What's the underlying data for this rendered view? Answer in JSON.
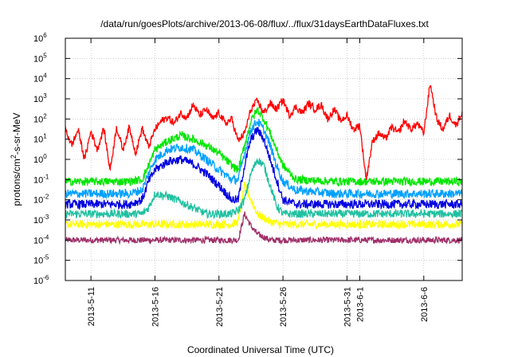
{
  "chart_data": {
    "type": "line",
    "title": "/data/run/goesPlots/archive/2013-06-08/flux/../flux/31daysEarthDataFluxes.txt",
    "xlabel": "Coordinated Universal Time (UTC)",
    "ylabel_main": "protons/cm",
    "ylabel_sup": "2",
    "ylabel_tail": "-s-sr-MeV",
    "y_scale": "log",
    "ylim": [
      1e-06,
      1000000.0
    ],
    "xlim": [
      "2013-05-09",
      "2013-06-09"
    ],
    "y_ticks": [
      {
        "value": 1e-06,
        "base": "10",
        "exp": "-6"
      },
      {
        "value": 1e-05,
        "base": "10",
        "exp": "-5"
      },
      {
        "value": 0.0001,
        "base": "10",
        "exp": "-4"
      },
      {
        "value": 0.001,
        "base": "10",
        "exp": "-3"
      },
      {
        "value": 0.01,
        "base": "10",
        "exp": "-2"
      },
      {
        "value": 0.1,
        "base": "10",
        "exp": "-1"
      },
      {
        "value": 1,
        "base": "10",
        "exp": "0"
      },
      {
        "value": 10,
        "base": "10",
        "exp": "1"
      },
      {
        "value": 100,
        "base": "10",
        "exp": "2"
      },
      {
        "value": 1000,
        "base": "10",
        "exp": "3"
      },
      {
        "value": 10000,
        "base": "10",
        "exp": "4"
      },
      {
        "value": 100000,
        "base": "10",
        "exp": "5"
      },
      {
        "value": 1000000,
        "base": "10",
        "exp": "6"
      }
    ],
    "x_ticks": [
      {
        "date": "2013-05-11",
        "label": "2013-5-11"
      },
      {
        "date": "2013-05-16",
        "label": "2013-5-16"
      },
      {
        "date": "2013-05-21",
        "label": "2013-5-21"
      },
      {
        "date": "2013-05-26",
        "label": "2013-5-26"
      },
      {
        "date": "2013-05-31",
        "label": "2013-5-31"
      },
      {
        "date": "2013-06-01",
        "label": "2013-6-1"
      },
      {
        "date": "2013-06-06",
        "label": "2013-6-6"
      }
    ],
    "grid": true,
    "legend": "none",
    "series": [
      {
        "color": "#ff0000",
        "noise": 0.18,
        "x": [
          "2013-05-09",
          "2013-05-09 12:00",
          "2013-05-10",
          "2013-05-10 12:00",
          "2013-05-11",
          "2013-05-11 12:00",
          "2013-05-12",
          "2013-05-12 12:00",
          "2013-05-13",
          "2013-05-13 12:00",
          "2013-05-14",
          "2013-05-14 12:00",
          "2013-05-15",
          "2013-05-15 12:00",
          "2013-05-16",
          "2013-05-16 12:00",
          "2013-05-17",
          "2013-05-17 12:00",
          "2013-05-18",
          "2013-05-18 12:00",
          "2013-05-19",
          "2013-05-19 12:00",
          "2013-05-20",
          "2013-05-20 12:00",
          "2013-05-21",
          "2013-05-21 12:00",
          "2013-05-22",
          "2013-05-22 12:00",
          "2013-05-23",
          "2013-05-23 12:00",
          "2013-05-24",
          "2013-05-24 12:00",
          "2013-05-25",
          "2013-05-25 12:00",
          "2013-05-26",
          "2013-05-26 12:00",
          "2013-05-27",
          "2013-05-27 12:00",
          "2013-05-28",
          "2013-05-28 12:00",
          "2013-05-29",
          "2013-05-29 12:00",
          "2013-05-30",
          "2013-05-30 12:00",
          "2013-05-31",
          "2013-05-31 12:00",
          "2013-06-01",
          "2013-06-01 12:00",
          "2013-06-02",
          "2013-06-02 12:00",
          "2013-06-03",
          "2013-06-03 12:00",
          "2013-06-04",
          "2013-06-04 12:00",
          "2013-06-05",
          "2013-06-05 12:00",
          "2013-06-06",
          "2013-06-06 12:00",
          "2013-06-07",
          "2013-06-07 12:00",
          "2013-06-08",
          "2013-06-08 12:00",
          "2013-06-09"
        ],
        "y": [
          30,
          5,
          30,
          1,
          25,
          3,
          35,
          0.3,
          40,
          3,
          40,
          2,
          35,
          4,
          30,
          80,
          120,
          60,
          200,
          120,
          500,
          150,
          300,
          100,
          200,
          60,
          100,
          8,
          20,
          300,
          800,
          200,
          600,
          300,
          900,
          150,
          400,
          200,
          600,
          300,
          500,
          100,
          300,
          80,
          150,
          30,
          50,
          0.1,
          8,
          20,
          10,
          40,
          20,
          80,
          30,
          60,
          20,
          6000,
          100,
          30,
          150,
          50,
          200
        ]
      },
      {
        "color": "#00e600",
        "noise": 0.2,
        "x": [
          "2013-05-09",
          "2013-05-12",
          "2013-05-14",
          "2013-05-15",
          "2013-05-15 12:00",
          "2013-05-16",
          "2013-05-17",
          "2013-05-18",
          "2013-05-19",
          "2013-05-20",
          "2013-05-21",
          "2013-05-22",
          "2013-05-22 12:00",
          "2013-05-23",
          "2013-05-23 12:00",
          "2013-05-24",
          "2013-05-24 12:00",
          "2013-05-25",
          "2013-05-25 12:00",
          "2013-05-26",
          "2013-05-27",
          "2013-05-30",
          "2013-06-03",
          "2013-06-06",
          "2013-06-09"
        ],
        "y": [
          0.08,
          0.08,
          0.08,
          0.1,
          0.5,
          3,
          8,
          15,
          10,
          5,
          2,
          0.5,
          0.3,
          5,
          80,
          300,
          100,
          20,
          3,
          0.5,
          0.1,
          0.08,
          0.08,
          0.08,
          0.08
        ]
      },
      {
        "color": "#00a0ff",
        "noise": 0.22,
        "x": [
          "2013-05-09",
          "2013-05-12",
          "2013-05-14",
          "2013-05-15",
          "2013-05-15 12:00",
          "2013-05-16",
          "2013-05-17",
          "2013-05-18",
          "2013-05-19",
          "2013-05-20",
          "2013-05-21",
          "2013-05-22",
          "2013-05-22 12:00",
          "2013-05-23",
          "2013-05-23 12:00",
          "2013-05-24",
          "2013-05-24 12:00",
          "2013-05-25",
          "2013-05-25 12:00",
          "2013-05-26",
          "2013-05-27",
          "2013-05-30",
          "2013-06-03",
          "2013-06-06",
          "2013-06-09"
        ],
        "y": [
          0.02,
          0.02,
          0.02,
          0.03,
          0.2,
          1,
          3,
          4,
          3,
          1,
          0.3,
          0.1,
          0.1,
          2,
          30,
          80,
          30,
          5,
          0.5,
          0.08,
          0.03,
          0.02,
          0.02,
          0.02,
          0.02
        ]
      },
      {
        "color": "#0000e0",
        "noise": 0.22,
        "x": [
          "2013-05-09",
          "2013-05-12",
          "2013-05-14",
          "2013-05-15",
          "2013-05-15 12:00",
          "2013-05-16",
          "2013-05-17",
          "2013-05-18",
          "2013-05-19",
          "2013-05-20",
          "2013-05-21",
          "2013-05-22",
          "2013-05-22 12:00",
          "2013-05-23",
          "2013-05-23 12:00",
          "2013-05-24",
          "2013-05-24 12:00",
          "2013-05-25",
          "2013-05-25 12:00",
          "2013-05-26",
          "2013-05-27",
          "2013-05-30",
          "2013-06-03",
          "2013-06-06",
          "2013-06-09"
        ],
        "y": [
          0.006,
          0.006,
          0.006,
          0.01,
          0.08,
          0.3,
          0.8,
          1,
          0.6,
          0.2,
          0.05,
          0.01,
          0.01,
          0.5,
          10,
          30,
          10,
          1,
          0.1,
          0.01,
          0.006,
          0.006,
          0.006,
          0.006,
          0.006
        ]
      },
      {
        "color": "#20c0a0",
        "noise": 0.2,
        "x": [
          "2013-05-09",
          "2013-05-12",
          "2013-05-14",
          "2013-05-15",
          "2013-05-15 12:00",
          "2013-05-16",
          "2013-05-17",
          "2013-05-18",
          "2013-05-19",
          "2013-05-20",
          "2013-05-21",
          "2013-05-22",
          "2013-05-22 12:00",
          "2013-05-23",
          "2013-05-23 12:00",
          "2013-05-24",
          "2013-05-24 12:00",
          "2013-05-25",
          "2013-05-25 12:00",
          "2013-05-26",
          "2013-05-27",
          "2013-05-30",
          "2013-06-03",
          "2013-06-06",
          "2013-06-09"
        ],
        "y": [
          0.002,
          0.002,
          0.002,
          0.002,
          0.004,
          0.02,
          0.015,
          0.008,
          0.004,
          0.002,
          0.002,
          0.002,
          0.003,
          0.01,
          0.2,
          1,
          0.5,
          0.05,
          0.005,
          0.002,
          0.002,
          0.002,
          0.002,
          0.002,
          0.002
        ]
      },
      {
        "color": "#ffff00",
        "noise": 0.2,
        "x": [
          "2013-05-09",
          "2013-05-12",
          "2013-05-15",
          "2013-05-18",
          "2013-05-21",
          "2013-05-22",
          "2013-05-22 12:00",
          "2013-05-23",
          "2013-05-23 12:00",
          "2013-05-24",
          "2013-05-25",
          "2013-05-26",
          "2013-05-27",
          "2013-05-30",
          "2013-06-03",
          "2013-06-06",
          "2013-06-09"
        ],
        "y": [
          0.0006,
          0.0006,
          0.0006,
          0.0006,
          0.0006,
          0.0006,
          0.0008,
          0.05,
          0.01,
          0.002,
          0.0008,
          0.0006,
          0.0006,
          0.0006,
          0.0006,
          0.0006,
          0.0006
        ]
      },
      {
        "color": "#a0306a",
        "noise": 0.15,
        "x": [
          "2013-05-09",
          "2013-05-12",
          "2013-05-15",
          "2013-05-18",
          "2013-05-21",
          "2013-05-22",
          "2013-05-22 12:00",
          "2013-05-23",
          "2013-05-23 12:00",
          "2013-05-24",
          "2013-05-25",
          "2013-05-26",
          "2013-05-27",
          "2013-05-30",
          "2013-06-03",
          "2013-06-06",
          "2013-06-09"
        ],
        "y": [
          0.0001,
          0.0001,
          0.0001,
          0.0001,
          0.0001,
          0.0001,
          0.0001,
          0.002,
          0.0005,
          0.0002,
          0.0001,
          0.0001,
          0.0001,
          0.0001,
          0.0001,
          0.0001,
          0.0001
        ]
      }
    ]
  }
}
